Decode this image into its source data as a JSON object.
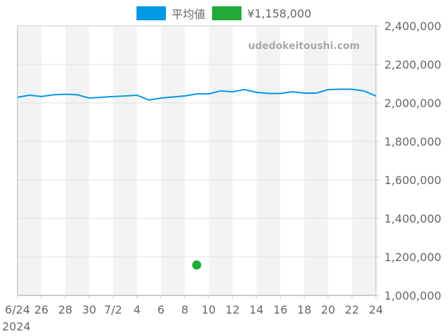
{
  "legend": {
    "items": [
      {
        "label": "平均値",
        "color": "#0099e6"
      },
      {
        "label": "¥1,158,000",
        "color": "#22aa3a"
      }
    ]
  },
  "watermark": "udedokeitoushi.com",
  "colors": {
    "line": "#0099e6",
    "point": "#22aa3a",
    "stripe": "#f3f3f3",
    "grid": "#e0e0e0",
    "axis": "#cccccc"
  },
  "chart_data": {
    "type": "line",
    "title": "",
    "xlabel": "",
    "ylabel": "",
    "x_year_label": "2024",
    "x_tick_labels": [
      "6/24",
      "26",
      "28",
      "30",
      "7/2",
      "4",
      "6",
      "8",
      "10",
      "12",
      "14",
      "16",
      "18",
      "20",
      "22",
      "24"
    ],
    "y_tick_labels": [
      "2,400,000",
      "2,200,000",
      "2,000,000",
      "1,800,000",
      "1,600,000",
      "1,400,000",
      "1,200,000",
      "1,000,000"
    ],
    "ylim": [
      1000000,
      2400000
    ],
    "y_ticks": [
      2400000,
      2200000,
      2000000,
      1800000,
      1600000,
      1400000,
      1200000,
      1000000
    ],
    "x_range_days": 30,
    "grid": true,
    "legend_position": "top",
    "y_axis_position": "right",
    "series": [
      {
        "name": "平均値",
        "type": "line",
        "color": "#0099e6",
        "x": [
          "6/24",
          "6/25",
          "6/26",
          "6/27",
          "6/28",
          "6/29",
          "6/30",
          "7/1",
          "7/2",
          "7/3",
          "7/4",
          "7/5",
          "7/6",
          "7/7",
          "7/8",
          "7/9",
          "7/10",
          "7/11",
          "7/12",
          "7/13",
          "7/14",
          "7/15",
          "7/16",
          "7/17",
          "7/18",
          "7/19",
          "7/20",
          "7/21",
          "7/22",
          "7/23",
          "7/24"
        ],
        "values": [
          2029000,
          2040000,
          2033000,
          2042000,
          2045000,
          2042000,
          2025000,
          2029000,
          2033000,
          2036000,
          2040000,
          2015000,
          2025000,
          2031000,
          2036000,
          2047000,
          2047000,
          2062000,
          2058000,
          2069000,
          2055000,
          2049000,
          2049000,
          2058000,
          2051000,
          2051000,
          2069000,
          2071000,
          2071000,
          2062000,
          2036000
        ]
      },
      {
        "name": "¥1,158,000",
        "type": "scatter",
        "color": "#22aa3a",
        "x": [
          "7/9"
        ],
        "values": [
          1158000
        ]
      }
    ]
  }
}
